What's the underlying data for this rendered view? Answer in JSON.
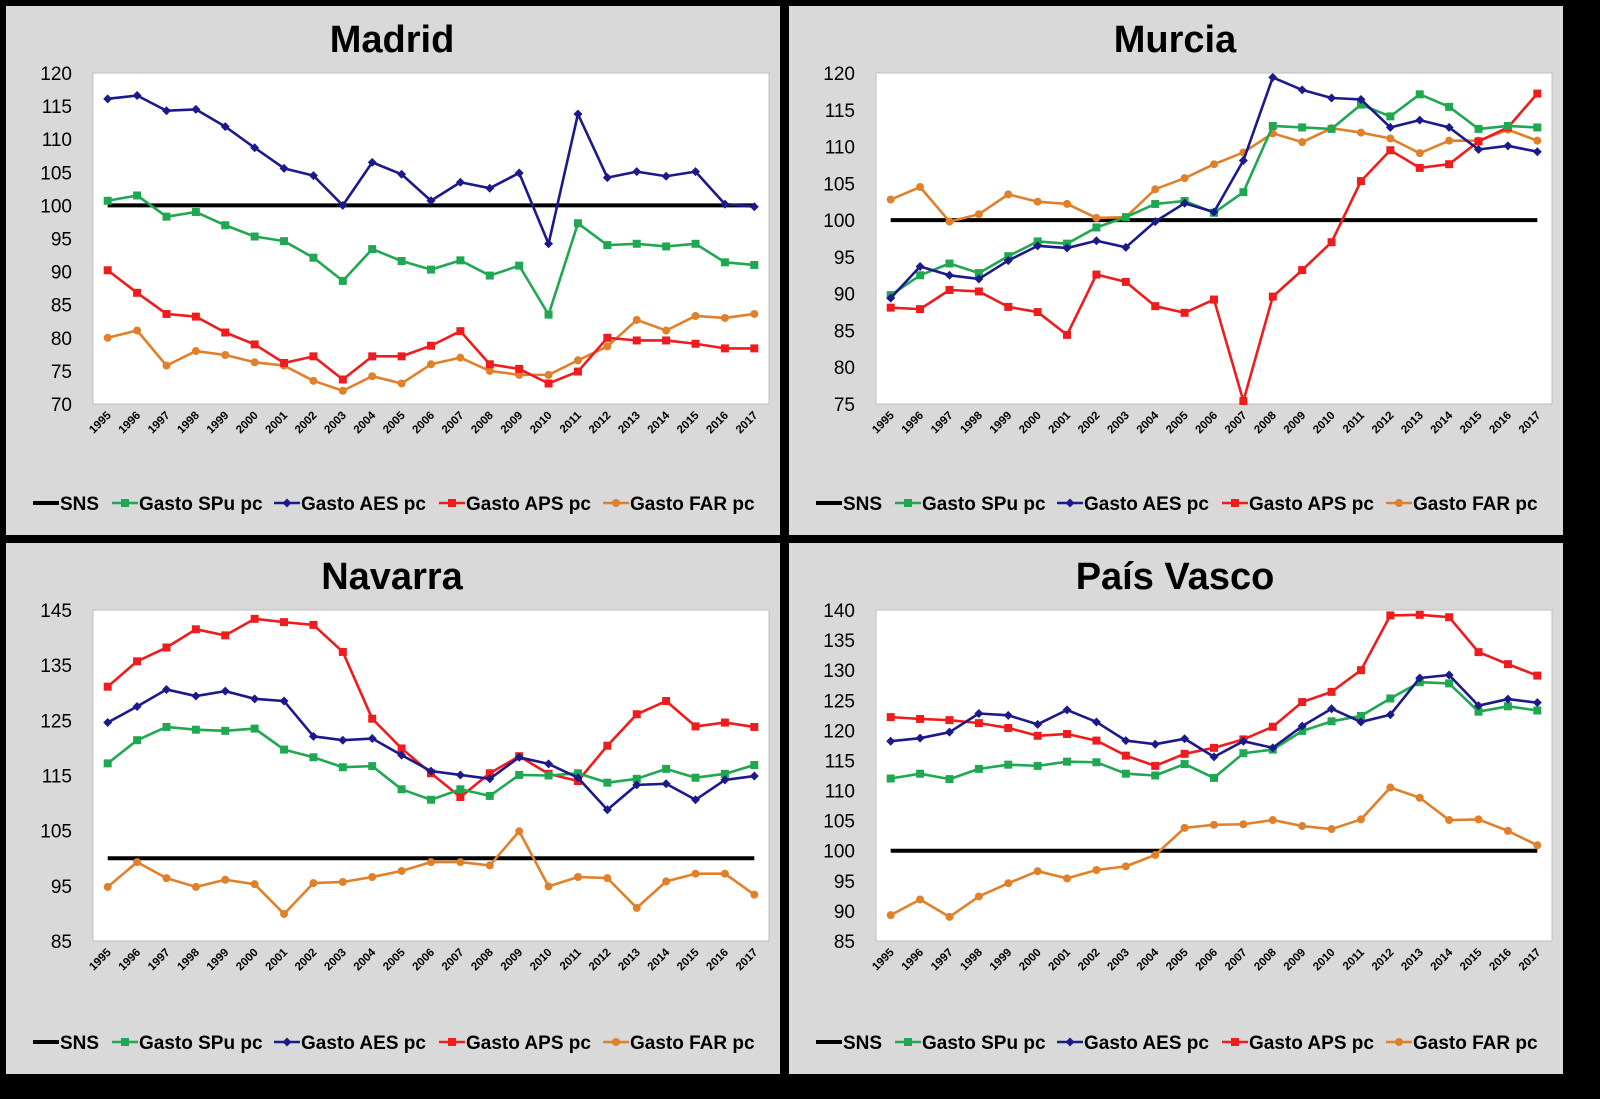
{
  "colors": {
    "SNS": "#000000",
    "SPu": "#1fa851",
    "AES": "#1c1a8a",
    "APS": "#ee1c1c",
    "FAR": "#e0802a",
    "panel_bg": "#d9d9d9",
    "plot_bg": "#ffffff"
  },
  "legend": [
    "SNS",
    "Gasto SPu pc",
    "Gasto AES pc",
    "Gasto APS pc",
    "Gasto FAR pc"
  ],
  "chart_data": [
    {
      "type": "line",
      "title": "Madrid",
      "x": [
        "1995",
        "1996",
        "1997",
        "1998",
        "1999",
        "2000",
        "2001",
        "2002",
        "2003",
        "2004",
        "2005",
        "2006",
        "2007",
        "2008",
        "2009",
        "2010",
        "2011",
        "2012",
        "2013",
        "2014",
        "2015",
        "2016",
        "2017"
      ],
      "ylim": [
        70,
        120
      ],
      "yticks": [
        "70",
        "75",
        "80",
        "85",
        "90",
        "95",
        "100",
        "105",
        "110",
        "115",
        "120"
      ],
      "series": [
        {
          "name": "SNS",
          "values": [
            100,
            100,
            100,
            100,
            100,
            100,
            100,
            100,
            100,
            100,
            100,
            100,
            100,
            100,
            100,
            100,
            100,
            100,
            100,
            100,
            100,
            100,
            100
          ]
        },
        {
          "name": "Gasto SPu pc",
          "values": [
            100.7,
            101.5,
            98.3,
            99.0,
            97.0,
            95.3,
            94.6,
            92.1,
            88.6,
            93.4,
            91.6,
            90.3,
            91.7,
            89.4,
            90.9,
            83.5,
            97.3,
            94.0,
            94.2,
            93.8,
            94.2,
            91.4,
            91.0
          ]
        },
        {
          "name": "Gasto AES pc",
          "values": [
            116.1,
            116.6,
            114.3,
            114.5,
            111.9,
            108.7,
            105.6,
            104.5,
            100.0,
            106.5,
            104.7,
            100.7,
            103.5,
            102.6,
            104.9,
            94.2,
            113.8,
            104.2,
            105.1,
            104.4,
            105.1,
            100.2,
            99.8
          ]
        },
        {
          "name": "Gasto APS pc",
          "values": [
            90.2,
            86.8,
            83.6,
            83.2,
            80.8,
            79.0,
            76.2,
            77.2,
            73.7,
            77.2,
            77.2,
            78.8,
            81.0,
            76.0,
            75.3,
            73.1,
            74.9,
            80.0,
            79.6,
            79.6,
            79.1,
            78.4,
            78.4
          ]
        },
        {
          "name": "Gasto FAR pc",
          "values": [
            80.0,
            81.1,
            75.8,
            78.0,
            77.4,
            76.3,
            75.8,
            73.5,
            72.0,
            74.2,
            73.1,
            76.0,
            77.0,
            75.0,
            74.4,
            74.4,
            76.6,
            78.7,
            82.7,
            81.1,
            83.3,
            83.0,
            83.6
          ]
        }
      ]
    },
    {
      "type": "line",
      "title": "Murcia",
      "x": [
        "1995",
        "1996",
        "1997",
        "1998",
        "1999",
        "2000",
        "2001",
        "2002",
        "2003",
        "2004",
        "2005",
        "2006",
        "2007",
        "2008",
        "2009",
        "2010",
        "2011",
        "2012",
        "2013",
        "2014",
        "2015",
        "2016",
        "2017"
      ],
      "ylim": [
        75,
        120
      ],
      "yticks": [
        "75",
        "80",
        "85",
        "90",
        "95",
        "100",
        "105",
        "110",
        "115",
        "120"
      ],
      "series": [
        {
          "name": "SNS",
          "values": [
            100,
            100,
            100,
            100,
            100,
            100,
            100,
            100,
            100,
            100,
            100,
            100,
            100,
            100,
            100,
            100,
            100,
            100,
            100,
            100,
            100,
            100,
            100
          ]
        },
        {
          "name": "Gasto SPu pc",
          "values": [
            89.8,
            92.5,
            94.1,
            92.8,
            95.1,
            97.1,
            96.8,
            99.0,
            100.4,
            102.2,
            102.6,
            101.0,
            103.8,
            112.8,
            112.6,
            112.4,
            115.7,
            114.1,
            117.1,
            115.4,
            112.4,
            112.8,
            112.6
          ]
        },
        {
          "name": "Gasto AES pc",
          "values": [
            89.4,
            93.7,
            92.5,
            92.0,
            94.5,
            96.5,
            96.2,
            97.2,
            96.3,
            99.8,
            102.3,
            101.1,
            108.1,
            119.4,
            117.7,
            116.6,
            116.4,
            112.6,
            113.6,
            112.6,
            109.6,
            110.1,
            109.3
          ]
        },
        {
          "name": "Gasto APS pc",
          "values": [
            88.1,
            87.9,
            90.5,
            90.3,
            88.2,
            87.5,
            84.4,
            92.6,
            91.6,
            88.3,
            87.4,
            89.2,
            75.4,
            89.6,
            93.2,
            97.0,
            105.3,
            109.5,
            107.1,
            107.6,
            110.7,
            112.6,
            117.2
          ]
        },
        {
          "name": "Gasto FAR pc",
          "values": [
            102.8,
            104.5,
            99.8,
            100.8,
            103.5,
            102.5,
            102.2,
            100.3,
            100.4,
            104.2,
            105.7,
            107.6,
            109.2,
            111.8,
            110.6,
            112.5,
            111.9,
            111.1,
            109.1,
            110.8,
            110.8,
            112.3,
            110.8
          ]
        }
      ]
    },
    {
      "type": "line",
      "title": "Navarra",
      "x": [
        "1995",
        "1996",
        "1997",
        "1998",
        "1999",
        "2000",
        "2001",
        "2002",
        "2003",
        "2004",
        "2005",
        "2006",
        "2007",
        "2008",
        "2009",
        "2010",
        "2011",
        "2012",
        "2013",
        "2014",
        "2015",
        "2016",
        "2017"
      ],
      "ylim": [
        85,
        145
      ],
      "yticks": [
        "85",
        "95",
        "105",
        "115",
        "125",
        "135",
        "145"
      ],
      "series": [
        {
          "name": "SNS",
          "values": [
            100,
            100,
            100,
            100,
            100,
            100,
            100,
            100,
            100,
            100,
            100,
            100,
            100,
            100,
            100,
            100,
            100,
            100,
            100,
            100,
            100,
            100,
            100
          ]
        },
        {
          "name": "Gasto SPu pc",
          "values": [
            117.2,
            121.4,
            123.8,
            123.3,
            123.1,
            123.5,
            119.7,
            118.3,
            116.5,
            116.7,
            112.5,
            110.6,
            112.5,
            111.3,
            115.1,
            115.0,
            115.4,
            113.7,
            114.4,
            116.2,
            114.6,
            115.3,
            116.9
          ]
        },
        {
          "name": "Gasto AES pc",
          "values": [
            124.6,
            127.5,
            130.6,
            129.4,
            130.3,
            128.9,
            128.5,
            122.1,
            121.4,
            121.7,
            118.7,
            115.8,
            115.1,
            114.4,
            118.3,
            117.1,
            114.6,
            108.8,
            113.3,
            113.5,
            110.6,
            114.2,
            114.9
          ]
        },
        {
          "name": "Gasto APS pc",
          "values": [
            131.1,
            135.7,
            138.2,
            141.5,
            140.4,
            143.4,
            142.8,
            142.3,
            137.4,
            125.3,
            119.9,
            115.4,
            111.1,
            115.4,
            118.5,
            115.3,
            114.0,
            120.4,
            126.1,
            128.5,
            123.9,
            124.6,
            123.8
          ]
        },
        {
          "name": "Gasto FAR pc",
          "values": [
            94.8,
            99.3,
            96.4,
            94.8,
            96.1,
            95.3,
            89.9,
            95.5,
            95.7,
            96.6,
            97.7,
            99.3,
            99.3,
            98.7,
            104.9,
            94.9,
            96.6,
            96.4,
            91.0,
            95.8,
            97.2,
            97.2,
            93.4
          ]
        }
      ]
    },
    {
      "type": "line",
      "title": "País Vasco",
      "x": [
        "1995",
        "1996",
        "1997",
        "1998",
        "1999",
        "2000",
        "2001",
        "2002",
        "2003",
        "2004",
        "2005",
        "2006",
        "2007",
        "2008",
        "2009",
        "2010",
        "2011",
        "2012",
        "2013",
        "2014",
        "2015",
        "2016",
        "2017"
      ],
      "ylim": [
        85,
        140
      ],
      "yticks": [
        "85",
        "90",
        "95",
        "100",
        "105",
        "110",
        "115",
        "120",
        "125",
        "130",
        "135",
        "140"
      ],
      "series": [
        {
          "name": "SNS",
          "values": [
            100,
            100,
            100,
            100,
            100,
            100,
            100,
            100,
            100,
            100,
            100,
            100,
            100,
            100,
            100,
            100,
            100,
            100,
            100,
            100,
            100,
            100,
            100
          ]
        },
        {
          "name": "Gasto SPu pc",
          "values": [
            112.0,
            112.8,
            111.9,
            113.6,
            114.3,
            114.1,
            114.8,
            114.7,
            112.8,
            112.5,
            114.4,
            112.1,
            116.2,
            116.8,
            119.9,
            121.5,
            122.4,
            125.3,
            128.0,
            127.8,
            123.1,
            124.0,
            123.3
          ]
        },
        {
          "name": "Gasto AES pc",
          "values": [
            118.2,
            118.7,
            119.7,
            122.8,
            122.5,
            121.0,
            123.4,
            121.4,
            118.3,
            117.7,
            118.6,
            115.6,
            118.2,
            117.1,
            120.7,
            123.6,
            121.4,
            122.6,
            128.7,
            129.2,
            124.1,
            125.2,
            124.6
          ]
        },
        {
          "name": "Gasto APS pc",
          "values": [
            122.2,
            121.9,
            121.7,
            121.2,
            120.4,
            119.1,
            119.4,
            118.3,
            115.8,
            114.1,
            116.1,
            117.1,
            118.5,
            120.6,
            124.7,
            126.4,
            130.0,
            139.1,
            139.2,
            138.8,
            133.0,
            131.0,
            129.1
          ]
        },
        {
          "name": "Gasto FAR pc",
          "values": [
            89.3,
            91.9,
            89.0,
            92.4,
            94.6,
            96.6,
            95.4,
            96.8,
            97.4,
            99.3,
            103.8,
            104.3,
            104.4,
            105.1,
            104.1,
            103.6,
            105.2,
            110.5,
            108.8,
            105.1,
            105.2,
            103.3,
            100.9
          ]
        }
      ]
    }
  ]
}
